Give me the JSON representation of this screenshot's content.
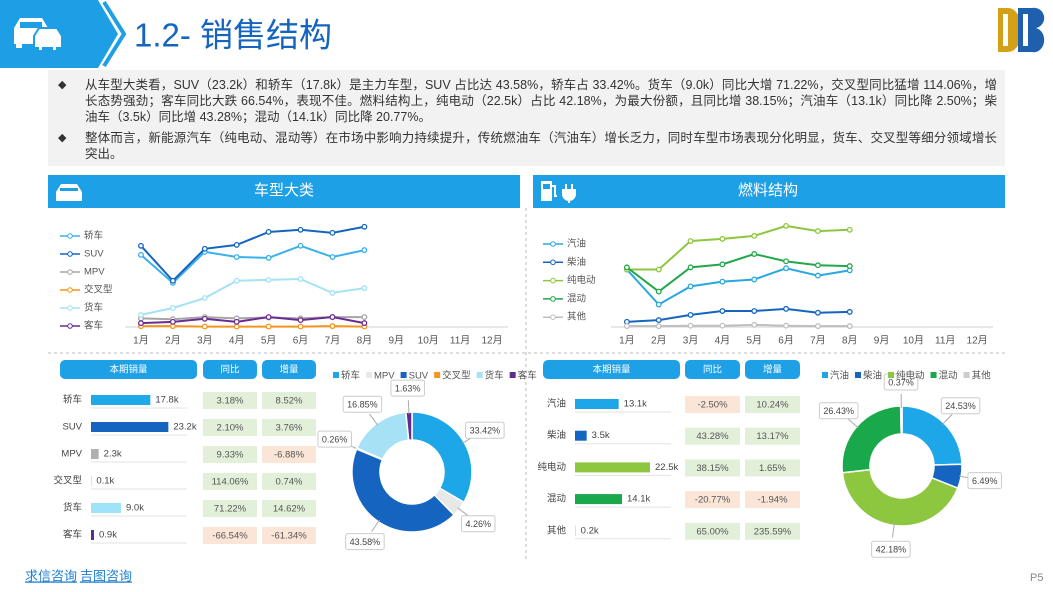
{
  "header": {
    "title": "1.2- 销售结构"
  },
  "bullets": [
    "从车型大类看，SUV（23.2k）和轿车（17.8k）是主力车型，SUV 占比达 43.58%，轿车占 33.42%。货车（9.0k）同比大增 71.22%，交叉型同比猛增 114.06%，增长态势强劲；客车同比大跌 66.54%，表现不佳。燃料结构上，纯电动（22.5k）占比 42.18%，为最大份额，且同比增 38.15%；汽油车（13.1k）同比降 2.50%；柴油车（3.5k）同比增 43.28%；混动（14.1k）同比降 20.77%。",
    "整体而言，新能源汽车（纯电动、混动等）在市场中影响力持续提升，传统燃油车（汽油车）增长乏力，同时车型市场表现分化明显，货车、交叉型等细分领域增长突出。"
  ],
  "panels": [
    {
      "title": "车型大类"
    },
    {
      "title": "燃料结构"
    }
  ],
  "footer": {
    "links": [
      "求信咨询",
      "吉图咨询"
    ],
    "page": "P5"
  },
  "chart_data": [
    {
      "type": "line",
      "categories": [
        "1月",
        "2月",
        "3月",
        "4月",
        "5月",
        "6月",
        "7月",
        "8月",
        "9月",
        "10月",
        "11月",
        "12月"
      ],
      "ylim": [
        0,
        25
      ],
      "series": [
        {
          "name": "轿车",
          "color": "#3bb0ea",
          "values": [
            16.7,
            10.2,
            17.4,
            16.2,
            16.0,
            18.8,
            16.2,
            17.8,
            null,
            null,
            null,
            null
          ]
        },
        {
          "name": "SUV",
          "color": "#1565c0",
          "values": [
            18.8,
            10.7,
            18.1,
            19.0,
            22.0,
            22.5,
            21.8,
            23.2,
            null,
            null,
            null,
            null
          ]
        },
        {
          "name": "MPV",
          "color": "#a6a6a6",
          "values": [
            2.0,
            1.8,
            2.3,
            2.0,
            2.2,
            2.0,
            2.3,
            2.3,
            null,
            null,
            null,
            null
          ]
        },
        {
          "name": "交叉型",
          "color": "#f7941d",
          "values": [
            0.2,
            0.2,
            0.1,
            0.1,
            0.1,
            0.1,
            0.2,
            0.1,
            null,
            null,
            null,
            null
          ]
        },
        {
          "name": "货车",
          "color": "#a6e1f5",
          "values": [
            2.8,
            4.4,
            6.7,
            10.7,
            10.9,
            11.1,
            7.9,
            9.0,
            null,
            null,
            null,
            null
          ]
        },
        {
          "name": "客车",
          "color": "#6a2c91",
          "values": [
            0.9,
            1.2,
            1.9,
            1.2,
            2.3,
            1.6,
            2.3,
            0.9,
            null,
            null,
            null,
            null
          ]
        }
      ]
    },
    {
      "type": "line",
      "categories": [
        "1月",
        "2月",
        "3月",
        "4月",
        "5月",
        "6月",
        "7月",
        "8月",
        "9月",
        "10月",
        "11月",
        "12月"
      ],
      "ylim": [
        0,
        25
      ],
      "series": [
        {
          "name": "汽油",
          "color": "#29a8e0",
          "values": [
            13.3,
            5.2,
            9.4,
            10.5,
            11.0,
            13.6,
            11.9,
            13.1,
            null,
            null,
            null,
            null
          ]
        },
        {
          "name": "柴油",
          "color": "#1565c0",
          "values": [
            1.2,
            1.6,
            2.8,
            3.7,
            3.7,
            4.2,
            3.3,
            3.5,
            null,
            null,
            null,
            null
          ]
        },
        {
          "name": "纯电动",
          "color": "#8dc63f",
          "values": [
            13.3,
            13.3,
            19.9,
            20.4,
            21.1,
            23.4,
            22.2,
            22.5,
            null,
            null,
            null,
            null
          ]
        },
        {
          "name": "混动",
          "color": "#22a84a",
          "values": [
            13.8,
            8.2,
            13.8,
            14.5,
            16.9,
            15.2,
            14.3,
            14.1,
            null,
            null,
            null,
            null
          ]
        },
        {
          "name": "其他",
          "color": "#bfbfbf",
          "values": [
            0.2,
            0.2,
            0.3,
            0.3,
            0.5,
            0.3,
            0.2,
            0.2,
            null,
            null,
            null,
            null
          ]
        }
      ]
    },
    {
      "type": "hbar",
      "headers": [
        "本期销量",
        "同比",
        "增量"
      ],
      "categories": [
        "轿车",
        "SUV",
        "MPV",
        "交叉型",
        "货车",
        "客车"
      ],
      "values": [
        17.8,
        23.2,
        2.3,
        0.1,
        9.0,
        0.9
      ],
      "value_labels": [
        "17.8k",
        "23.2k",
        "2.3k",
        "0.1k",
        "9.0k",
        "0.9k"
      ],
      "colors": [
        "#1fa9e8",
        "#1565c0",
        "#b0b0b0",
        "#f7941d",
        "#9ee3f7",
        "#5c2d91"
      ],
      "xlim": [
        0,
        24
      ],
      "yoy": [
        "3.18%",
        "2.10%",
        "9.33%",
        "114.06%",
        "71.22%",
        "-66.54%"
      ],
      "increase": [
        "8.52%",
        "3.76%",
        "-6.88%",
        "0.74%",
        "14.62%",
        "-61.34%"
      ]
    },
    {
      "type": "hbar",
      "headers": [
        "本期销量",
        "同比",
        "增量"
      ],
      "categories": [
        "汽油",
        "柴油",
        "纯电动",
        "混动",
        "其他"
      ],
      "values": [
        13.1,
        3.5,
        22.5,
        14.1,
        0.2
      ],
      "value_labels": [
        "13.1k",
        "3.5k",
        "22.5k",
        "14.1k",
        "0.2k"
      ],
      "colors": [
        "#1ea7e8",
        "#1565c0",
        "#8dc63f",
        "#19a84a",
        "#cccccc"
      ],
      "xlim": [
        0,
        24
      ],
      "yoy": [
        "-2.50%",
        "43.28%",
        "38.15%",
        "-20.77%",
        "65.00%"
      ],
      "increase": [
        "10.24%",
        "13.17%",
        "1.65%",
        "-1.94%",
        "235.59%"
      ]
    },
    {
      "type": "pie",
      "categories": [
        "轿车",
        "MPV",
        "SUV",
        "交叉型",
        "货车",
        "客车"
      ],
      "values": [
        33.42,
        4.26,
        43.58,
        0.26,
        16.85,
        1.63
      ],
      "value_labels": [
        "33.42%",
        "4.26%",
        "43.58%",
        "0.26%",
        "16.85%",
        "1.63%"
      ],
      "colors": [
        "#1ea7e8",
        "#e8e8e8",
        "#1565c0",
        "#f7941d",
        "#a6e1f5",
        "#5c2d91"
      ]
    },
    {
      "type": "pie",
      "categories": [
        "汽油",
        "柴油",
        "纯电动",
        "混动",
        "其他"
      ],
      "values": [
        24.53,
        6.49,
        42.18,
        26.43,
        0.37
      ],
      "value_labels": [
        "24.53%",
        "6.49%",
        "42.18%",
        "26.43%",
        "0.37%"
      ],
      "colors": [
        "#1ea7e8",
        "#1565c0",
        "#8dc63f",
        "#19a84a",
        "#cccccc"
      ]
    }
  ]
}
